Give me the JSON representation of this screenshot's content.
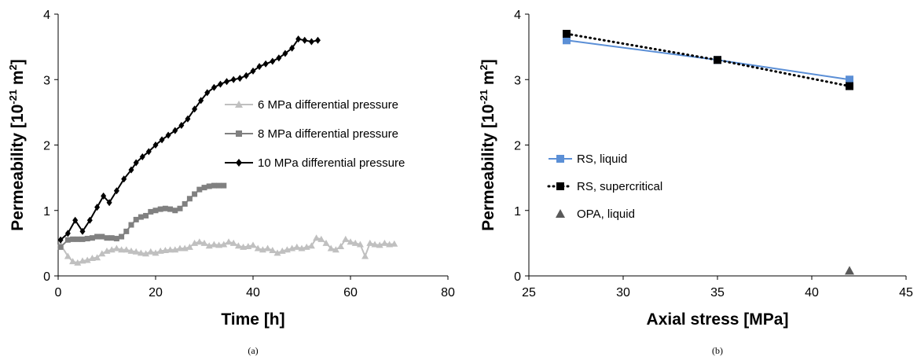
{
  "chart_data": [
    {
      "id": "a",
      "type": "line",
      "caption": "(a)",
      "xlabel": "Time [h]",
      "ylabel": "Permeability [10",
      "ylabel_sup": "-21",
      "ylabel_mid": " m",
      "ylabel_sup2": "2",
      "ylabel_end": "]",
      "xlim": [
        0,
        80
      ],
      "ylim": [
        0,
        4
      ],
      "xticks": [
        "0",
        "20",
        "40",
        "60",
        "80"
      ],
      "yticks": [
        "0",
        "1",
        "2",
        "3",
        "4"
      ],
      "legend_position": "right",
      "series": [
        {
          "name": "6 MPa differential pressure",
          "color": "#c0c0c0",
          "marker": "triangle",
          "line": "solid",
          "x": [
            0.5,
            2,
            3,
            4,
            5,
            6,
            7,
            8,
            9,
            10,
            11,
            12,
            13,
            14,
            15,
            16,
            17,
            18,
            19,
            20,
            21,
            22,
            23,
            24,
            25,
            26,
            27,
            28,
            29,
            30,
            31,
            32,
            33,
            34,
            35,
            36,
            37,
            38,
            39,
            40,
            41,
            42,
            43,
            44,
            45,
            46,
            47,
            48,
            49,
            50,
            51,
            52,
            53,
            54,
            55,
            56,
            57,
            58,
            59,
            60,
            61,
            62,
            63,
            64,
            65,
            66,
            67,
            68,
            69
          ],
          "y": [
            0.48,
            0.3,
            0.22,
            0.2,
            0.23,
            0.24,
            0.27,
            0.28,
            0.34,
            0.38,
            0.4,
            0.42,
            0.4,
            0.4,
            0.38,
            0.37,
            0.35,
            0.34,
            0.37,
            0.35,
            0.38,
            0.39,
            0.4,
            0.4,
            0.42,
            0.42,
            0.44,
            0.5,
            0.52,
            0.5,
            0.46,
            0.48,
            0.47,
            0.48,
            0.52,
            0.5,
            0.46,
            0.44,
            0.45,
            0.47,
            0.42,
            0.4,
            0.42,
            0.39,
            0.35,
            0.38,
            0.4,
            0.42,
            0.44,
            0.42,
            0.44,
            0.46,
            0.58,
            0.56,
            0.5,
            0.42,
            0.4,
            0.45,
            0.56,
            0.52,
            0.5,
            0.48,
            0.3,
            0.5,
            0.48,
            0.47,
            0.5,
            0.48,
            0.49
          ]
        },
        {
          "name": "8 MPa differential pressure",
          "color": "#808080",
          "marker": "square",
          "line": "solid",
          "x": [
            0.5,
            2,
            3,
            4,
            5,
            6,
            7,
            8,
            9,
            10,
            11,
            12,
            13,
            14,
            15,
            16,
            17,
            18,
            19,
            20,
            21,
            22,
            23,
            24,
            25,
            26,
            27,
            28,
            29,
            30,
            31,
            32,
            33,
            34
          ],
          "y": [
            0.44,
            0.55,
            0.56,
            0.56,
            0.56,
            0.57,
            0.58,
            0.6,
            0.6,
            0.58,
            0.58,
            0.57,
            0.6,
            0.68,
            0.78,
            0.86,
            0.9,
            0.92,
            0.98,
            1.0,
            1.02,
            1.03,
            1.02,
            1.0,
            1.03,
            1.1,
            1.18,
            1.25,
            1.32,
            1.35,
            1.37,
            1.38,
            1.38,
            1.38
          ]
        },
        {
          "name": "10 MPa differential pressure",
          "color": "#000000",
          "marker": "diamond",
          "line": "solid",
          "x": [
            0.5,
            2,
            3.5,
            5,
            6.5,
            8,
            9.3,
            10.5,
            12,
            13.5,
            15,
            16,
            17.3,
            18.6,
            20,
            21.3,
            22.6,
            24,
            25.3,
            26.6,
            28,
            29.3,
            30.6,
            32,
            33.3,
            34.6,
            36,
            37.3,
            38.6,
            40,
            41.3,
            42.6,
            44,
            45.3,
            46.6,
            48,
            49.3,
            50.6,
            52,
            53.3
          ],
          "y": [
            0.55,
            0.65,
            0.85,
            0.68,
            0.85,
            1.05,
            1.22,
            1.12,
            1.3,
            1.48,
            1.62,
            1.73,
            1.82,
            1.9,
            2.0,
            2.08,
            2.15,
            2.22,
            2.3,
            2.4,
            2.55,
            2.68,
            2.8,
            2.88,
            2.93,
            2.97,
            3.0,
            3.02,
            3.06,
            3.13,
            3.2,
            3.24,
            3.28,
            3.33,
            3.4,
            3.48,
            3.62,
            3.6,
            3.58,
            3.6
          ]
        }
      ]
    },
    {
      "id": "b",
      "type": "line",
      "caption": "(b)",
      "xlabel": "Axial stress [MPa]",
      "ylabel": "Permeability [10",
      "ylabel_sup": "-21",
      "ylabel_mid": " m",
      "ylabel_sup2": "2",
      "ylabel_end": "]",
      "xlim": [
        25,
        45
      ],
      "ylim": [
        0,
        4
      ],
      "xticks": [
        "25",
        "30",
        "35",
        "40",
        "45"
      ],
      "yticks": [
        "0",
        "1",
        "2",
        "3",
        "4"
      ],
      "legend_position": "left",
      "series": [
        {
          "name": "RS, liquid",
          "color": "#5b8fd6",
          "marker": "square",
          "line": "solid",
          "x": [
            27,
            35,
            42
          ],
          "y": [
            3.6,
            3.3,
            3.0
          ]
        },
        {
          "name": "RS, supercritical",
          "color": "#000000",
          "marker": "square",
          "line": "dotted",
          "x": [
            27,
            35,
            42
          ],
          "y": [
            3.7,
            3.3,
            2.9
          ]
        },
        {
          "name": "OPA, liquid",
          "color": "#595959",
          "marker": "triangle",
          "line": "none",
          "x": [
            42
          ],
          "y": [
            0.08
          ]
        }
      ]
    }
  ]
}
